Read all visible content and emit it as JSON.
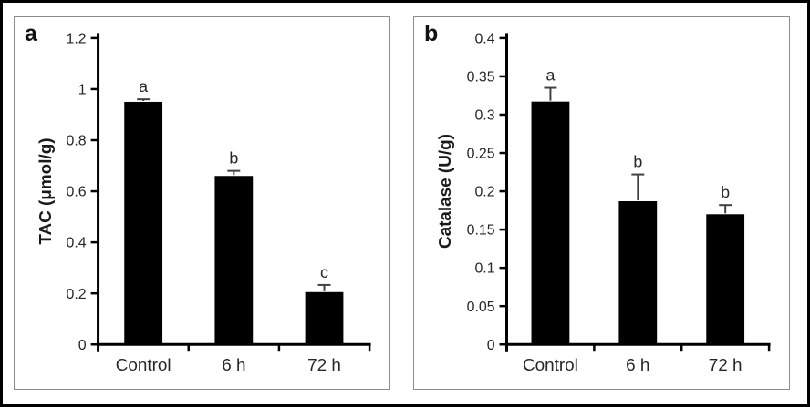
{
  "chart_data": [
    {
      "type": "bar",
      "panel_label": "a",
      "ylabel": "TAC (μmol/g)",
      "categories": [
        "Control",
        "6 h",
        "72 h"
      ],
      "values": [
        0.95,
        0.66,
        0.205
      ],
      "errors_up": [
        0.01,
        0.02,
        0.028
      ],
      "sig_letters": [
        "a",
        "b",
        "c"
      ],
      "ylim": [
        0,
        1.2
      ],
      "yticks": [
        0,
        0.2,
        0.4,
        0.6,
        0.8,
        1,
        1.2
      ],
      "ytick_labels": [
        "0",
        "0.2",
        "0.4",
        "0.6",
        "0.8",
        "1",
        "1.2"
      ],
      "bar_color": "#000000",
      "grid": false,
      "legend": "none"
    },
    {
      "type": "bar",
      "panel_label": "b",
      "ylabel": "Catalase (U/g)",
      "categories": [
        "Control",
        "6 h",
        "72 h"
      ],
      "values": [
        0.317,
        0.187,
        0.17
      ],
      "errors_up": [
        0.018,
        0.035,
        0.012
      ],
      "sig_letters": [
        "a",
        "b",
        "b"
      ],
      "ylim": [
        0,
        0.4
      ],
      "yticks": [
        0,
        0.05,
        0.1,
        0.15,
        0.2,
        0.25,
        0.3,
        0.35,
        0.4
      ],
      "ytick_labels": [
        "0",
        "0.05",
        "0.1",
        "0.15",
        "0.2",
        "0.25",
        "0.3",
        "0.35",
        "0.4"
      ],
      "bar_color": "#000000",
      "grid": false,
      "legend": "none"
    }
  ]
}
